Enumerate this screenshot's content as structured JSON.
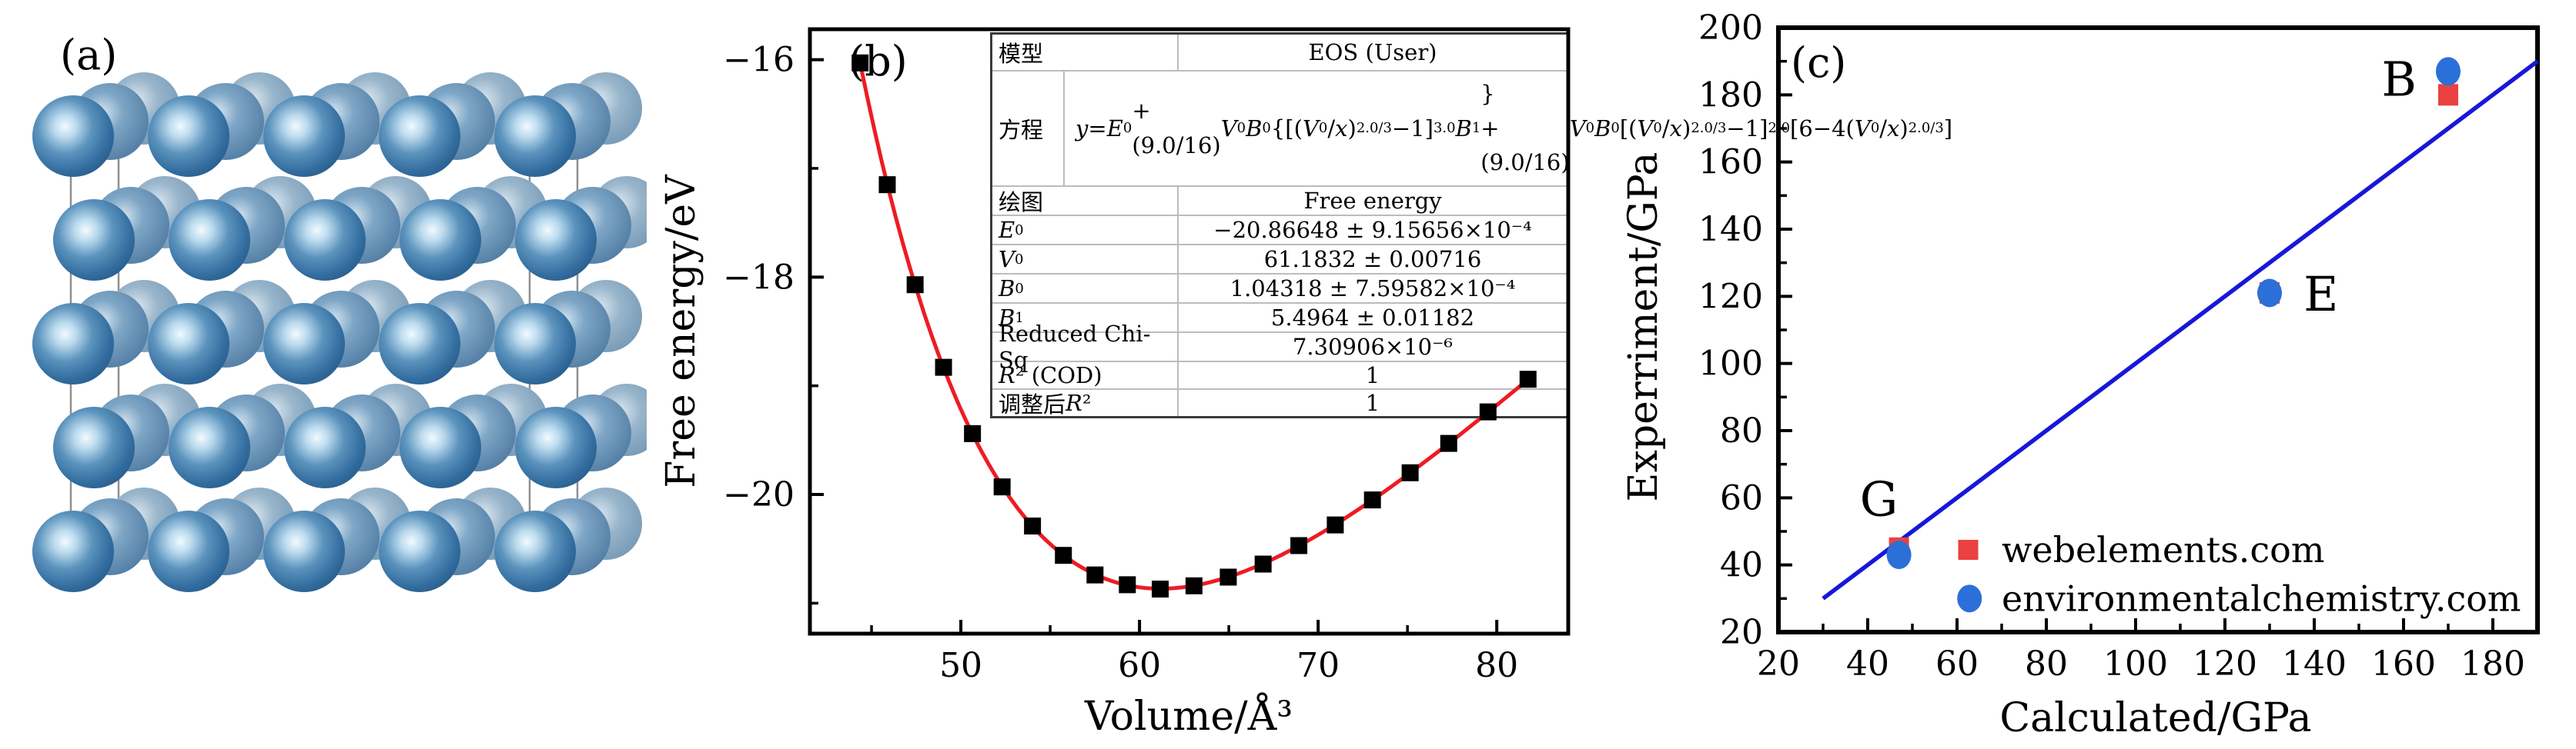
{
  "panels": {
    "a": "(a)",
    "b": "(b)",
    "c": "(c)"
  },
  "panel_a": {
    "label": "(a)",
    "atom_front_color": "#2e6b9b",
    "atom_mid_color": "#5e88ad",
    "atom_back_color": "#8aabc5",
    "cell_line_color": "#8f8f8f"
  },
  "panel_b": {
    "label": "(b)",
    "table": {
      "rows": [
        {
          "label_html": "模型",
          "value": "EOS (User)"
        },
        {
          "label_html": "方程",
          "value_html": "<i>y</i> = <i>E</i><sub>0</sub>+(9.0/16)<i>V</i><sub>0</sub><i>B</i><sub>0</sub>{[(<i>V</i><sub>0</sub>/<i>x</i>)<sup>2.0/3</sup>−1]<sup>3.0</sup><i>B</i><sub>1</sub>}<br>+(9.0/16)<i>V</i><sub>0</sub><i>B</i><sub>0</sub>[(<i>V</i><sub>0</sub>/<i>x</i>)<sup>2.0/3</sup>−1]<sup>2.0</sup>[6−4(<i>V</i><sub>0</sub>/<i>x</i>)<sup>2.0/3</sup>]",
          "narrow": true
        },
        {
          "label_html": "绘图",
          "value": "Free energy"
        },
        {
          "label_html": "<i>E</i><sub>0</sub>",
          "value": "−20.86648 ± 9.15656×10⁻⁴"
        },
        {
          "label_html": "<i>V</i><sub>0</sub>",
          "value": "61.1832 ± 0.00716"
        },
        {
          "label_html": "<i>B</i><sub>0</sub>",
          "value": "1.04318 ± 7.59582×10⁻⁴"
        },
        {
          "label_html": "<i>B</i><sub>1</sub>",
          "value": "5.4964 ± 0.01182"
        },
        {
          "label_html": "Reduced Chi-Sq",
          "value": "7.30906×10⁻⁶"
        },
        {
          "label_html": "<i>R</i>² (COD)",
          "value": "1"
        },
        {
          "label_html": "调整后<i>R</i>²",
          "value": "1"
        }
      ]
    }
  },
  "panel_c": {
    "label": "(c)"
  },
  "chart_data": [
    {
      "id": "eos-fit",
      "type": "scatter",
      "title": "",
      "xlabel": "Volume/Å³",
      "ylabel": "Free energy/eV",
      "xlim": [
        41.55,
        84.0
      ],
      "ylim": [
        -21.28,
        -15.72
      ],
      "x_major_ticks": [
        50,
        60,
        70,
        80
      ],
      "x_minor_ticks": [
        45,
        55,
        65,
        75
      ],
      "y_major_ticks": [
        -16,
        -18,
        -20
      ],
      "y_minor_ticks": [
        -17,
        -19,
        -21
      ],
      "grid": false,
      "series": [
        {
          "name": "Free energy",
          "marker": "square",
          "color": "#000000",
          "x": [
            44.36,
            45.88,
            47.44,
            49.03,
            50.65,
            52.31,
            54.01,
            55.74,
            57.51,
            59.32,
            61.16,
            63.05,
            64.97,
            66.92,
            68.92,
            70.96,
            73.04,
            75.15,
            77.31,
            79.51,
            81.75
          ],
          "y": [
            -16.03,
            -17.15,
            -18.07,
            -18.83,
            -19.44,
            -19.93,
            -20.29,
            -20.56,
            -20.74,
            -20.83,
            -20.87,
            -20.84,
            -20.76,
            -20.64,
            -20.47,
            -20.28,
            -20.05,
            -19.8,
            -19.53,
            -19.24,
            -18.94
          ]
        },
        {
          "name": "EOS fit curve",
          "type": "line",
          "color": "#ed1c24"
        }
      ],
      "fit_params": {
        "E0": -20.86648,
        "V0": 61.1832,
        "B0": 1.04318,
        "B1": 5.4964
      }
    },
    {
      "id": "moduli-comparison",
      "type": "scatter",
      "title": "",
      "xlabel": "Calculated/GPa",
      "ylabel": "Experriment/GPa",
      "xlim": [
        20,
        190
      ],
      "ylim": [
        20,
        200
      ],
      "x_major_ticks": [
        20,
        40,
        60,
        80,
        100,
        120,
        140,
        160,
        180
      ],
      "x_minor_ticks": [
        30,
        50,
        70,
        90,
        110,
        130,
        150,
        170,
        190
      ],
      "y_major_ticks": [
        20,
        40,
        60,
        80,
        100,
        120,
        140,
        160,
        180,
        200
      ],
      "y_minor_ticks": [
        30,
        50,
        70,
        90,
        110,
        130,
        150,
        170,
        190
      ],
      "grid": false,
      "identity_line": {
        "x1": 30,
        "y1": 30,
        "x2": 190,
        "y2": 190,
        "color": "#1717d9"
      },
      "series": [
        {
          "name": "webelements.com",
          "marker": "square",
          "color": "#ea4141",
          "points": [
            {
              "x": 170,
              "y": 180
            },
            {
              "x": 130,
              "y": 121
            },
            {
              "x": 47,
              "y": 45
            }
          ]
        },
        {
          "name": "environmentalchemistry.com",
          "marker": "circle",
          "color": "#2b6fd8",
          "points": [
            {
              "x": 170,
              "y": 187
            },
            {
              "x": 130,
              "y": 121
            },
            {
              "x": 47,
              "y": 43
            }
          ]
        }
      ],
      "point_labels": [
        {
          "text": "B",
          "x": 159,
          "y": 184.5
        },
        {
          "text": "E",
          "x": 141.5,
          "y": 120.5
        },
        {
          "text": "G",
          "x": 42.5,
          "y": 59.5
        }
      ],
      "legend": {
        "position": "lower-right-inside",
        "entries": [
          {
            "label": "webelements.com",
            "marker": "square",
            "color": "#ea4141"
          },
          {
            "label": "environmentalchemistry.com",
            "marker": "circle",
            "color": "#2b6fd8"
          }
        ]
      }
    }
  ]
}
